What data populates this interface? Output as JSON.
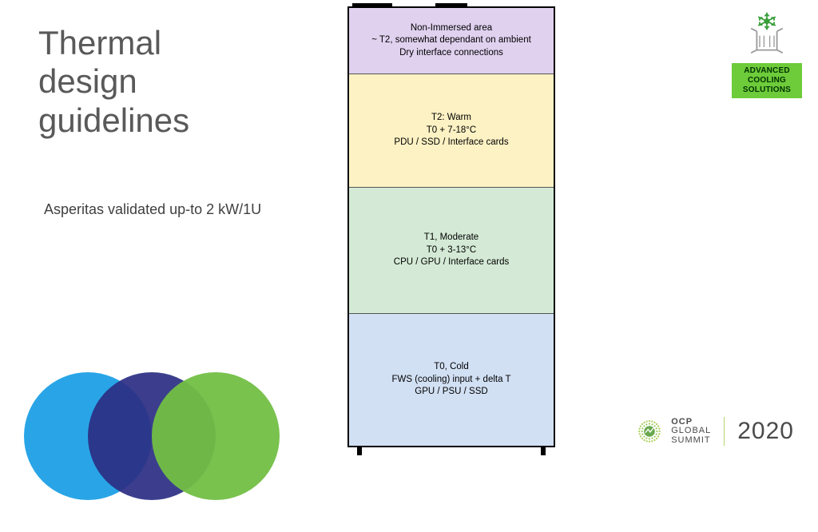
{
  "title": "Thermal\ndesign\nguidelines",
  "subtitle": "Asperitas validated up-to 2 kW/1U",
  "diagram": {
    "border_color": "#000000",
    "zones": [
      {
        "lines": [
          "Non-Immersed area",
          "~ T2, somewhat dependant on ambient",
          "Dry interface connections"
        ],
        "bg": "#e0d1ef",
        "flex": 0.9
      },
      {
        "lines": [
          "T2: Warm",
          "T0 + 7-18°C",
          "PDU / SSD / Interface cards"
        ],
        "bg": "#fdf2c4",
        "flex": 1.6
      },
      {
        "lines": [
          "T1, Moderate",
          "T0 + 3-13°C",
          "CPU / GPU / Interface cards"
        ],
        "bg": "#d4ead6",
        "flex": 1.8
      },
      {
        "lines": [
          "T0, Cold",
          "FWS (cooling) input + delta T",
          "GPU / PSU / SSD"
        ],
        "bg": "#d2e0f4",
        "flex": 1.9
      }
    ]
  },
  "badge": {
    "line1": "ADVANCED",
    "line2": "COOLING",
    "line3": "SOLUTIONS",
    "bg": "#6ecb3a",
    "snow_color": "#3a9e3a",
    "box_color": "#9a9a9a"
  },
  "footer": {
    "circles": [
      "#1ea0e6",
      "#2b2e83",
      "#72bf44"
    ],
    "ocp_line1": "OCP",
    "ocp_line2": "GLOBAL",
    "ocp_line3": "SUMMIT",
    "year": "2020",
    "mark_outer": "#b5d36a",
    "mark_inner": "#6aa84f"
  }
}
